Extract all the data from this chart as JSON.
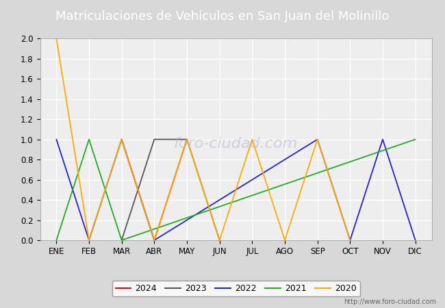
{
  "title": "Matriculaciones de Vehiculos en San Juan del Molinillo",
  "title_color": "#ffffff",
  "title_bg_color": "#4f6cb0",
  "months": [
    0,
    1,
    2,
    3,
    4,
    5,
    6,
    7,
    8,
    9,
    10,
    11
  ],
  "month_labels": [
    "ENE",
    "FEB",
    "MAR",
    "ABR",
    "MAY",
    "JUN",
    "JUL",
    "AGO",
    "SEP",
    "OCT",
    "NOV",
    "DIC"
  ],
  "series": {
    "2024": {
      "color": "#e8000e",
      "data": [
        null,
        null,
        1,
        0,
        1,
        null,
        null,
        null,
        null,
        null,
        null,
        null
      ]
    },
    "2023": {
      "color": "#555555",
      "data": [
        null,
        null,
        0,
        1,
        1,
        0,
        null,
        null,
        null,
        null,
        null,
        null
      ]
    },
    "2022": {
      "color": "#2222cc",
      "data": [
        1,
        0,
        1,
        0,
        null,
        null,
        null,
        null,
        1,
        0,
        1,
        0
      ]
    },
    "2021": {
      "color": "#22aa22",
      "data": [
        0,
        1,
        0,
        null,
        null,
        null,
        null,
        null,
        null,
        null,
        null,
        1
      ]
    },
    "2020": {
      "color": "#ffaa00",
      "data": [
        2,
        0,
        1,
        0,
        1,
        0,
        1,
        0,
        1,
        0,
        null,
        null
      ]
    }
  },
  "ylim": [
    0.0,
    2.0
  ],
  "yticks": [
    0.0,
    0.2,
    0.4,
    0.6,
    0.8,
    1.0,
    1.2,
    1.4,
    1.6,
    1.8,
    2.0
  ],
  "bg_color": "#d8d8d8",
  "plot_bg_color": "#eeeeee",
  "grid_color": "#ffffff",
  "watermark_text": "foro-ciudad.com",
  "watermark_color": "#b0b8cc",
  "url_text": "http://www.foro-ciudad.com",
  "legend_order": [
    "2024",
    "2023",
    "2022",
    "2021",
    "2020"
  ],
  "title_fontsize": 13,
  "tick_fontsize": 8.5,
  "legend_fontsize": 9
}
